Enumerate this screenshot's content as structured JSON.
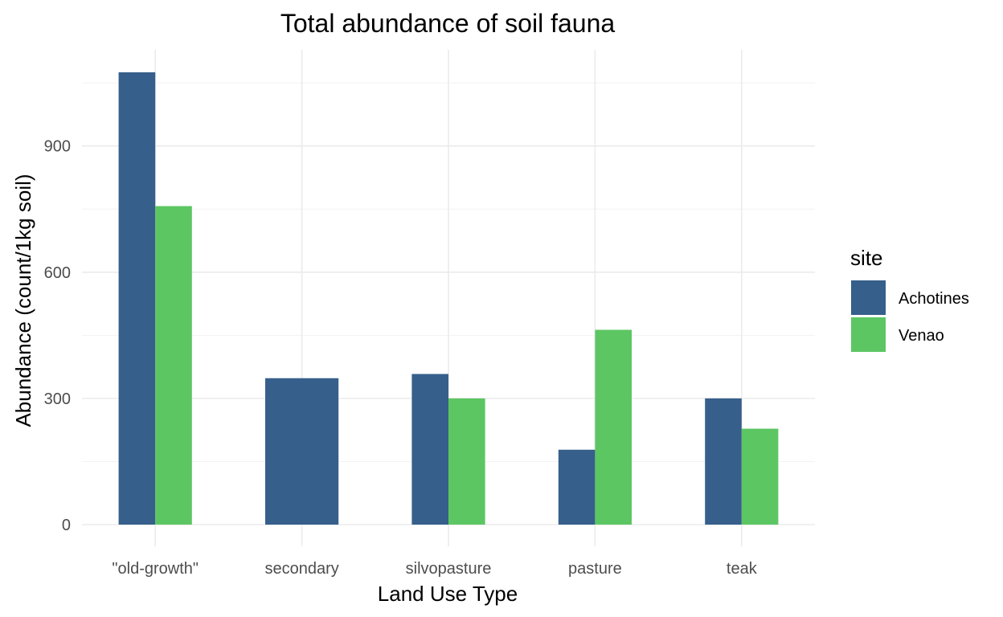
{
  "chart_data": {
    "type": "bar",
    "title": "Total abundance of soil fauna",
    "xlabel": "Land Use Type",
    "ylabel": "Abundance (count/1kg soil)",
    "categories": [
      "\"old-growth\"",
      "secondary",
      "silvopasture",
      "pasture",
      "teak"
    ],
    "series": [
      {
        "name": "Achotines",
        "color": "#365f8b",
        "values": [
          1075,
          348,
          358,
          178,
          300
        ]
      },
      {
        "name": "Venao",
        "color": "#5cc663",
        "values": [
          757,
          null,
          300,
          463,
          228
        ]
      }
    ],
    "ylim": [
      0,
      1075
    ],
    "yticks": [
      0,
      300,
      600,
      900
    ],
    "grid": true,
    "legend": {
      "title": "site",
      "position": "right"
    }
  }
}
